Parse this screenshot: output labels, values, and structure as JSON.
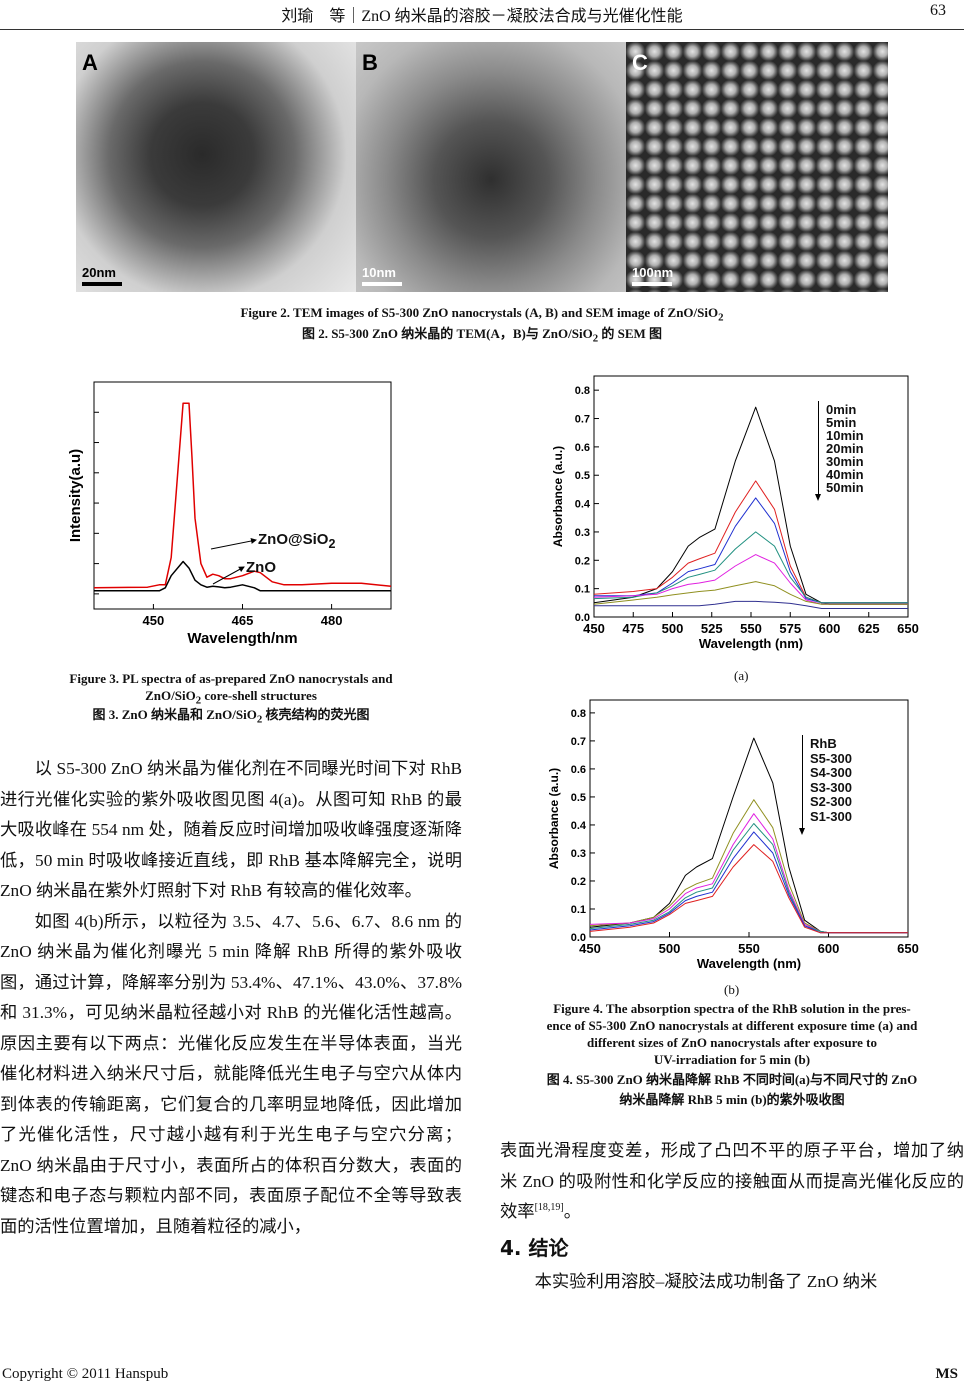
{
  "header": {
    "title": "刘瑜　等｜ZnO 纳米晶的溶胶－凝胶法合成与光催化性能",
    "page_number": "63"
  },
  "figure2": {
    "panels": [
      {
        "label": "A",
        "scale": "20nm"
      },
      {
        "label": "B",
        "scale": "10nm"
      },
      {
        "label": "C",
        "scale": "100nm"
      }
    ],
    "caption_en_a": "Figure 2. TEM images of S5-300 ZnO nanocrystals (A, B) and SEM image of ZnO/SiO",
    "caption_en_sub": "2",
    "caption_zh_a": "图 2. S5-300 ZnO 纳米晶的 TEM(A，B)与 ZnO/SiO",
    "caption_zh_sub": "2",
    "caption_zh_b": " 的 SEM 图"
  },
  "figure3": {
    "caption_en_1": "Figure 3. PL spectra of as-prepared ZnO nanocrystals and",
    "caption_en_2a": "ZnO/SiO",
    "caption_en_2sub": "2",
    "caption_en_2b": " core-shell structures",
    "caption_zh_a": "图 3. ZnO 纳米晶和 ZnO/SiO",
    "caption_zh_sub": "2",
    "caption_zh_b": " 核壳结构的荧光图",
    "label_coated": "ZnO@SiO",
    "label_coated_sub": "2",
    "label_bare": "ZnO"
  },
  "figure4": {
    "sub_a": "(a)",
    "sub_b": "(b)",
    "caption_en": [
      "Figure 4. The absorption spectra of the RhB solution in the pres-",
      "ence of S5-300 ZnO nanocrystals at different exposure time (a) and",
      "different sizes of ZnO nanocrystals after exposure to",
      "UV-irradiation for 5 min (b)"
    ],
    "caption_zh": [
      "图 4. S5-300 ZnO 纳米晶降解 RhB 不同时间(a)与不同尺寸的 ZnO",
      "纳米晶降解 RhB 5 min (b)的紫外吸收图"
    ]
  },
  "chart_data": [
    {
      "id": "fig3",
      "type": "line",
      "title": "",
      "xlabel": "Wavelength/nm",
      "ylabel": "Intensity(a.u)",
      "xlim": [
        440,
        490
      ],
      "ylim": [
        -0.5,
        7
      ],
      "xticks": [
        450,
        465,
        480
      ],
      "yticks": [
        0,
        1,
        2,
        3,
        4,
        5,
        6,
        7
      ],
      "ytick_labels": false,
      "grid": false,
      "series": [
        {
          "name": "ZnO@SiO2",
          "color": "#e00000",
          "x": [
            440,
            449,
            451,
            452,
            453,
            455,
            456,
            456.5,
            457,
            458,
            459,
            460,
            461,
            462,
            463,
            465,
            467,
            468,
            470,
            472,
            475,
            480,
            485,
            490
          ],
          "y": [
            0.2,
            0.22,
            0.3,
            0.3,
            1.2,
            6.3,
            6.3,
            4.5,
            2.5,
            1.0,
            0.55,
            0.65,
            0.6,
            0.5,
            0.5,
            0.6,
            0.75,
            0.7,
            0.4,
            0.3,
            0.3,
            0.35,
            0.35,
            0.25
          ]
        },
        {
          "name": "ZnO",
          "color": "#000000",
          "x": [
            440,
            449,
            451,
            452,
            453,
            455,
            456,
            457,
            458,
            459,
            460,
            461,
            462,
            463,
            465,
            467,
            468,
            470,
            472,
            475,
            480,
            485,
            490
          ],
          "y": [
            0.1,
            0.1,
            0.1,
            0.2,
            0.6,
            1.07,
            0.85,
            0.45,
            0.3,
            0.22,
            0.25,
            0.23,
            0.2,
            0.22,
            0.3,
            0.2,
            0.1,
            0.1,
            0.1,
            0.1,
            0.1,
            0.1,
            0.1
          ]
        }
      ]
    },
    {
      "id": "fig4a",
      "type": "line",
      "title": "",
      "xlabel": "Wavelength (nm)",
      "ylabel": "Absorbance (a.u.)",
      "xlim": [
        450,
        650
      ],
      "ylim": [
        0,
        0.85
      ],
      "xticks": [
        450,
        475,
        500,
        525,
        550,
        575,
        600,
        625,
        650
      ],
      "yticks": [
        0.0,
        0.1,
        0.2,
        0.3,
        0.4,
        0.5,
        0.6,
        0.7,
        0.8
      ],
      "ytick_labels": true,
      "grid": false,
      "legend": "top-right",
      "series": [
        {
          "name": "0min",
          "color": "#000000",
          "x": [
            450,
            475,
            490,
            500,
            510,
            517,
            527,
            540,
            553,
            565,
            575,
            585,
            595,
            600,
            625,
            650
          ],
          "y": [
            0.05,
            0.07,
            0.1,
            0.16,
            0.25,
            0.28,
            0.31,
            0.55,
            0.74,
            0.55,
            0.25,
            0.08,
            0.05,
            0.045,
            0.045,
            0.045
          ]
        },
        {
          "name": "5min",
          "color": "#e02020",
          "x": [
            450,
            475,
            490,
            500,
            510,
            517,
            527,
            540,
            553,
            565,
            575,
            585,
            595,
            600,
            625,
            650
          ],
          "y": [
            0.08,
            0.09,
            0.1,
            0.14,
            0.19,
            0.205,
            0.225,
            0.37,
            0.48,
            0.38,
            0.18,
            0.07,
            0.05,
            0.05,
            0.05,
            0.05
          ]
        },
        {
          "name": "10min",
          "color": "#2030d0",
          "x": [
            450,
            475,
            490,
            500,
            510,
            517,
            527,
            540,
            553,
            565,
            575,
            585,
            595,
            600,
            625,
            650
          ],
          "y": [
            0.075,
            0.075,
            0.085,
            0.12,
            0.16,
            0.17,
            0.185,
            0.32,
            0.42,
            0.33,
            0.16,
            0.065,
            0.05,
            0.05,
            0.05,
            0.05
          ]
        },
        {
          "name": "20min",
          "color": "#209080",
          "x": [
            450,
            475,
            490,
            500,
            510,
            517,
            527,
            540,
            553,
            565,
            575,
            585,
            595,
            600,
            625,
            650
          ],
          "y": [
            0.065,
            0.07,
            0.085,
            0.11,
            0.14,
            0.15,
            0.165,
            0.24,
            0.3,
            0.25,
            0.14,
            0.07,
            0.05,
            0.05,
            0.05,
            0.05
          ]
        },
        {
          "name": "30min",
          "color": "#e020e0",
          "x": [
            450,
            475,
            490,
            500,
            510,
            517,
            527,
            540,
            553,
            565,
            575,
            585,
            595,
            600,
            625,
            650
          ],
          "y": [
            0.07,
            0.075,
            0.08,
            0.1,
            0.115,
            0.12,
            0.13,
            0.18,
            0.22,
            0.19,
            0.12,
            0.06,
            0.045,
            0.045,
            0.045,
            0.045
          ]
        },
        {
          "name": "40min",
          "color": "#909020",
          "x": [
            450,
            475,
            490,
            500,
            510,
            517,
            527,
            540,
            553,
            565,
            575,
            585,
            595,
            600,
            625,
            650
          ],
          "y": [
            0.045,
            0.06,
            0.07,
            0.078,
            0.085,
            0.09,
            0.095,
            0.11,
            0.125,
            0.11,
            0.08,
            0.055,
            0.045,
            0.045,
            0.045,
            0.045
          ]
        },
        {
          "name": "50min",
          "color": "#303090",
          "x": [
            450,
            475,
            490,
            500,
            510,
            517,
            527,
            540,
            553,
            565,
            575,
            585,
            595,
            600,
            625,
            650
          ],
          "y": [
            0.04,
            0.04,
            0.04,
            0.04,
            0.04,
            0.04,
            0.045,
            0.055,
            0.055,
            0.052,
            0.048,
            0.04,
            0.03,
            0.03,
            0.03,
            0.03
          ]
        }
      ]
    },
    {
      "id": "fig4b",
      "type": "line",
      "title": "",
      "xlabel": "Wavelength (nm)",
      "ylabel": "Absorbance (a.u.)",
      "xlim": [
        450,
        650
      ],
      "ylim": [
        0,
        0.846
      ],
      "xticks": [
        450,
        500,
        550,
        600,
        650
      ],
      "yticks": [
        0.0,
        0.1,
        0.2,
        0.3,
        0.4,
        0.5,
        0.6,
        0.7,
        0.8
      ],
      "ytick_labels": true,
      "grid": false,
      "legend": "top-right",
      "series": [
        {
          "name": "RhB",
          "color": "#000000",
          "x": [
            450,
            475,
            490,
            500,
            510,
            517,
            527,
            540,
            553,
            565,
            575,
            585,
            595,
            600,
            625,
            650
          ],
          "y": [
            0.035,
            0.05,
            0.07,
            0.12,
            0.22,
            0.25,
            0.28,
            0.5,
            0.71,
            0.55,
            0.25,
            0.06,
            0.02,
            0.015,
            0.015,
            0.015
          ]
        },
        {
          "name": "S5-300",
          "color": "#909020",
          "x": [
            450,
            475,
            490,
            500,
            510,
            517,
            527,
            540,
            553,
            565,
            575,
            585,
            595,
            600,
            625,
            650
          ],
          "y": [
            0.04,
            0.05,
            0.07,
            0.11,
            0.17,
            0.19,
            0.21,
            0.37,
            0.49,
            0.39,
            0.19,
            0.05,
            0.02,
            0.015,
            0.015,
            0.015
          ]
        },
        {
          "name": "S4-300",
          "color": "#e020e0",
          "x": [
            450,
            475,
            490,
            500,
            510,
            517,
            527,
            540,
            553,
            565,
            575,
            585,
            595,
            600,
            625,
            650
          ],
          "y": [
            0.045,
            0.05,
            0.065,
            0.1,
            0.155,
            0.175,
            0.19,
            0.33,
            0.44,
            0.35,
            0.17,
            0.045,
            0.02,
            0.015,
            0.015,
            0.015
          ]
        },
        {
          "name": "S3-300",
          "color": "#209080",
          "x": [
            450,
            475,
            490,
            500,
            510,
            517,
            527,
            540,
            553,
            565,
            575,
            585,
            595,
            600,
            625,
            650
          ],
          "y": [
            0.03,
            0.045,
            0.06,
            0.09,
            0.14,
            0.16,
            0.175,
            0.31,
            0.405,
            0.33,
            0.16,
            0.04,
            0.02,
            0.015,
            0.015,
            0.015
          ]
        },
        {
          "name": "S2-300",
          "color": "#2030d0",
          "x": [
            450,
            475,
            490,
            500,
            510,
            517,
            527,
            540,
            553,
            565,
            575,
            585,
            595,
            600,
            625,
            650
          ],
          "y": [
            0.025,
            0.04,
            0.055,
            0.085,
            0.13,
            0.145,
            0.16,
            0.28,
            0.375,
            0.3,
            0.15,
            0.04,
            0.015,
            0.015,
            0.015,
            0.015
          ]
        },
        {
          "name": "S1-300",
          "color": "#e02020",
          "x": [
            450,
            475,
            490,
            500,
            510,
            517,
            527,
            540,
            553,
            565,
            575,
            585,
            595,
            600,
            625,
            650
          ],
          "y": [
            0.02,
            0.035,
            0.05,
            0.08,
            0.12,
            0.13,
            0.145,
            0.25,
            0.33,
            0.27,
            0.14,
            0.035,
            0.015,
            0.015,
            0.015,
            0.015
          ]
        }
      ]
    }
  ],
  "body": {
    "left_p1": "以 S5-300 ZnO 纳米晶为催化剂在不同曝光时间下对 RhB 进行光催化实验的紫外吸收图见图 4(a)。从图可知 RhB 的最大吸收峰在 554 nm 处，随着反应时间增加吸收峰强度逐渐降低，50 min 时吸收峰接近直线，即 RhB 基本降解完全，说明 ZnO 纳米晶在紫外灯照射下对 RhB 有较高的催化效率。",
    "left_p2": "如图 4(b)所示，以粒径为 3.5、4.7、5.6、6.7、8.6 nm 的 ZnO 纳米晶为催化剂曝光 5 min 降解 RhB 所得的紫外吸收图，通过计算，降解率分别为 53.4%、47.1%、43.0%、37.8%和 31.3%，可见纳米晶粒径越小对 RhB 的光催化活性越高。原因主要有以下两点：光催化反应发生在半导体表面，当光催化材料进入纳米尺寸后，就能降低光生电子与空穴从体内到体表的传输距离，它们复合的几率明显地降低，因此增加了光催化活性，尺寸越小越有利于光生电子与空穴分离；ZnO 纳米晶由于尺寸小，表面所占的体积百分数大，表面的键态和电子态与颗粒内部不同，表面原子配位不全等导致表面的活性位置增加，且随着粒径的减小，",
    "right_p1": "表面光滑程度变差，形成了凸凹不平的原子平台，增加了纳米 ZnO 的吸附性和化学反应的接触面从而提高光催化反应的效率",
    "right_p1_ref": "[18,19]",
    "right_p1_end": "。",
    "section_heading": "4. 结论",
    "right_p2": "本实验利用溶胶–凝胶法成功制备了 ZnO 纳米"
  },
  "footer": {
    "copyright": "Copyright © 2011 Hanspub",
    "journal": "MS"
  }
}
